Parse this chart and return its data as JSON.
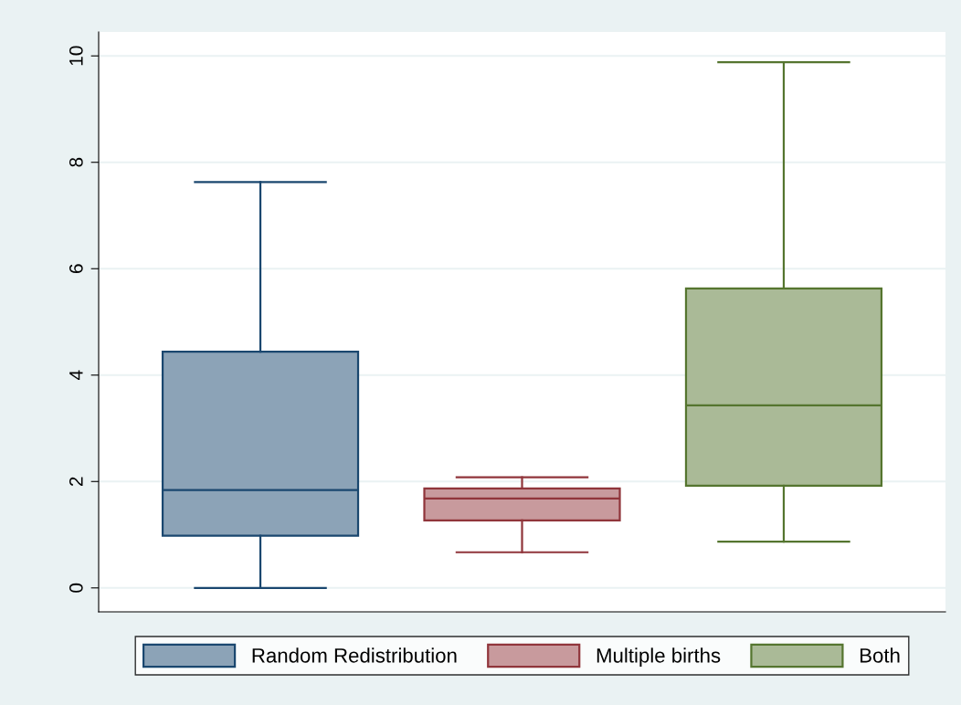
{
  "chart_data": {
    "type": "box",
    "categories": [
      null,
      null,
      null
    ],
    "series": [
      {
        "name": "Random Redistribution",
        "color": "#1a476f",
        "boxes": [
          {
            "low": 0,
            "q1": 0.98,
            "median": 1.84,
            "q3": 4.44,
            "high": 7.63
          },
          null,
          null
        ]
      },
      {
        "name": "Multiple births",
        "color": "#90353b",
        "boxes": [
          null,
          {
            "low": 0.67,
            "q1": 1.27,
            "median": 1.68,
            "q3": 1.87,
            "high": 2.08
          },
          null
        ]
      },
      {
        "name": "Both",
        "color": "#55752f",
        "boxes": [
          null,
          null,
          {
            "low": 0.87,
            "q1": 1.92,
            "median": 3.43,
            "q3": 5.63,
            "high": 9.88
          }
        ]
      }
    ],
    "ylim": [
      -0.45,
      10.45
    ],
    "yticks": [
      0,
      2,
      4,
      6,
      8,
      10
    ],
    "grid": "y",
    "legend": "bottom",
    "tick_labels": "y"
  }
}
